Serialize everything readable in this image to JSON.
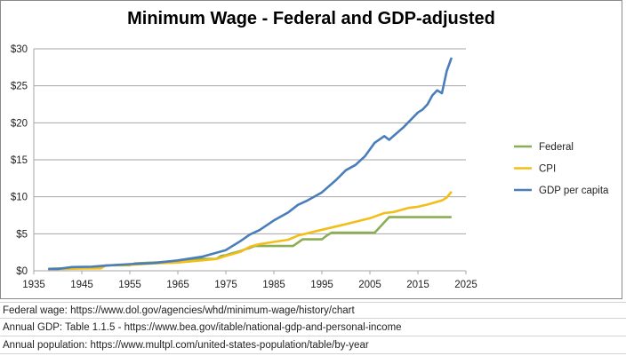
{
  "chart_data": {
    "type": "line",
    "title": "Minimum Wage - Federal and GDP-adjusted",
    "xlabel": "",
    "ylabel": "",
    "xlim": [
      1935,
      2025
    ],
    "ylim": [
      0,
      30
    ],
    "x_ticks": [
      "1935",
      "1945",
      "1955",
      "1965",
      "1975",
      "1985",
      "1995",
      "2005",
      "2015",
      "2025"
    ],
    "y_ticks": [
      "$0",
      "$5",
      "$10",
      "$15",
      "$20",
      "$25",
      "$30"
    ],
    "grid": "horizontal",
    "legend_position": "right",
    "series": [
      {
        "name": "Federal",
        "color": "#8CAE52",
        "points": [
          [
            1938,
            0.25
          ],
          [
            1939,
            0.3
          ],
          [
            1945,
            0.4
          ],
          [
            1949,
            0.4
          ],
          [
            1950,
            0.75
          ],
          [
            1955,
            0.75
          ],
          [
            1956,
            1.0
          ],
          [
            1961,
            1.15
          ],
          [
            1963,
            1.25
          ],
          [
            1967,
            1.4
          ],
          [
            1968,
            1.6
          ],
          [
            1973,
            1.6
          ],
          [
            1974,
            2.0
          ],
          [
            1975,
            2.1
          ],
          [
            1976,
            2.3
          ],
          [
            1978,
            2.65
          ],
          [
            1979,
            2.9
          ],
          [
            1980,
            3.1
          ],
          [
            1981,
            3.35
          ],
          [
            1989,
            3.35
          ],
          [
            1990,
            3.8
          ],
          [
            1991,
            4.25
          ],
          [
            1995,
            4.25
          ],
          [
            1996,
            4.75
          ],
          [
            1997,
            5.15
          ],
          [
            2006,
            5.15
          ],
          [
            2007,
            5.85
          ],
          [
            2008,
            6.55
          ],
          [
            2009,
            7.25
          ],
          [
            2022,
            7.25
          ]
        ]
      },
      {
        "name": "CPI",
        "color": "#F2BE1A",
        "points": [
          [
            1938,
            0.25
          ],
          [
            1941,
            0.25
          ],
          [
            1945,
            0.3
          ],
          [
            1949,
            0.33
          ],
          [
            1950,
            0.75
          ],
          [
            1955,
            0.8
          ],
          [
            1960,
            1.0
          ],
          [
            1965,
            1.12
          ],
          [
            1970,
            1.4
          ],
          [
            1973,
            1.6
          ],
          [
            1975,
            2.0
          ],
          [
            1978,
            2.55
          ],
          [
            1980,
            3.25
          ],
          [
            1982,
            3.6
          ],
          [
            1985,
            3.9
          ],
          [
            1988,
            4.2
          ],
          [
            1990,
            4.75
          ],
          [
            1995,
            5.55
          ],
          [
            2000,
            6.3
          ],
          [
            2005,
            7.1
          ],
          [
            2008,
            7.8
          ],
          [
            2010,
            7.95
          ],
          [
            2013,
            8.5
          ],
          [
            2015,
            8.65
          ],
          [
            2017,
            8.95
          ],
          [
            2020,
            9.5
          ],
          [
            2021,
            9.9
          ],
          [
            2022,
            10.7
          ]
        ]
      },
      {
        "name": "GDP per capita",
        "color": "#4A7EBB",
        "points": [
          [
            1938,
            0.25
          ],
          [
            1940,
            0.25
          ],
          [
            1943,
            0.5
          ],
          [
            1947,
            0.55
          ],
          [
            1950,
            0.7
          ],
          [
            1955,
            0.9
          ],
          [
            1960,
            1.05
          ],
          [
            1965,
            1.4
          ],
          [
            1970,
            1.9
          ],
          [
            1975,
            2.8
          ],
          [
            1978,
            4.0
          ],
          [
            1980,
            4.9
          ],
          [
            1982,
            5.5
          ],
          [
            1985,
            6.8
          ],
          [
            1988,
            7.9
          ],
          [
            1990,
            8.9
          ],
          [
            1992,
            9.5
          ],
          [
            1995,
            10.6
          ],
          [
            1998,
            12.3
          ],
          [
            2000,
            13.6
          ],
          [
            2002,
            14.3
          ],
          [
            2004,
            15.5
          ],
          [
            2006,
            17.3
          ],
          [
            2008,
            18.2
          ],
          [
            2009,
            17.7
          ],
          [
            2012,
            19.4
          ],
          [
            2015,
            21.4
          ],
          [
            2016,
            21.8
          ],
          [
            2017,
            22.5
          ],
          [
            2018,
            23.7
          ],
          [
            2019,
            24.4
          ],
          [
            2020,
            24.0
          ],
          [
            2021,
            27.0
          ],
          [
            2022,
            28.8
          ]
        ]
      }
    ]
  },
  "sources": [
    "Federal wage: https://www.dol.gov/agencies/whd/minimum-wage/history/chart",
    "Annual GDP: Table 1.1.5 - https://www.bea.gov/itable/national-gdp-and-personal-income",
    "Annual population: https://www.multpl.com/united-states-population/table/by-year"
  ]
}
